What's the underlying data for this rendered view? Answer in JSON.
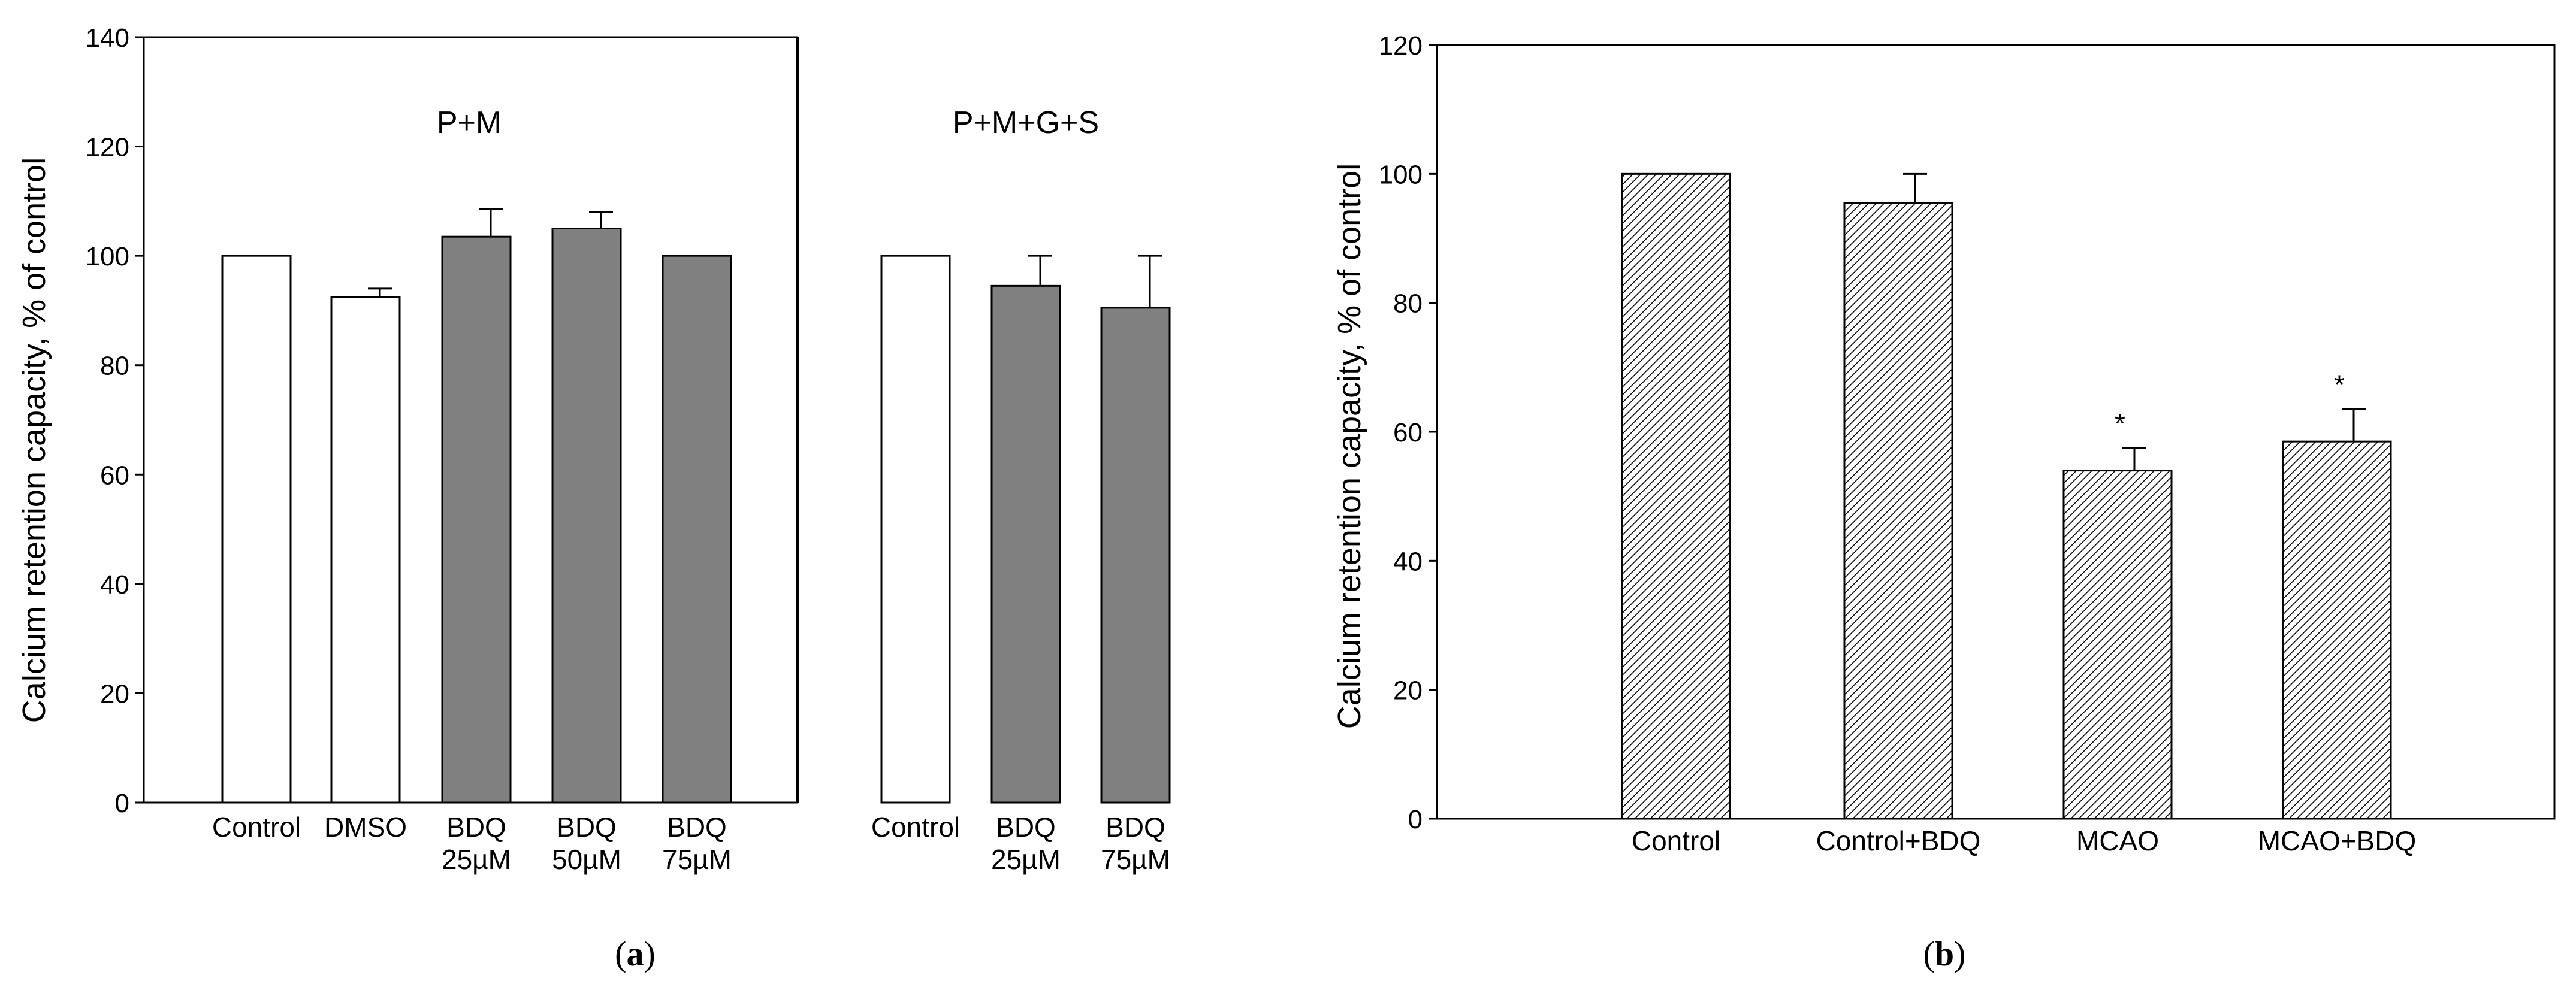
{
  "chart_data": [
    {
      "type": "bar",
      "ylabel": "Calcium retention capacity,  % of control",
      "ylim": [
        0,
        140
      ],
      "yticks": [
        0,
        20,
        40,
        60,
        80,
        100,
        120,
        140
      ],
      "grid": false,
      "groups": [
        {
          "label": "P+M",
          "categories": [
            {
              "label": [
                "Control"
              ],
              "value": 100,
              "err": null,
              "fill": "white"
            },
            {
              "label": [
                "DMSO"
              ],
              "value": 92.5,
              "err": 1.5,
              "fill": "white"
            },
            {
              "label": [
                "BDQ",
                "25µM"
              ],
              "value": 103.5,
              "err": 5,
              "fill": "gray"
            },
            {
              "label": [
                "BDQ",
                "50µM"
              ],
              "value": 105,
              "err": 3,
              "fill": "gray"
            },
            {
              "label": [
                "BDQ",
                "75µM"
              ],
              "value": 100,
              "err": null,
              "fill": "gray"
            }
          ]
        },
        {
          "label": "P+M+G+S",
          "categories": [
            {
              "label": [
                "Control"
              ],
              "value": 100,
              "err": null,
              "fill": "white"
            },
            {
              "label": [
                "BDQ",
                "25µM"
              ],
              "value": 94.5,
              "err": 5.5,
              "fill": "gray"
            },
            {
              "label": [
                "BDQ",
                "75µM"
              ],
              "value": 90.5,
              "err": 9.5,
              "fill": "gray"
            }
          ]
        }
      ],
      "colors": {
        "white": "#ffffff",
        "gray": "#808080",
        "edge": "#000000"
      },
      "panel_label": "a"
    },
    {
      "type": "bar",
      "ylabel": "Calcium retention capacity, % of control",
      "ylim": [
        0,
        120
      ],
      "yticks": [
        0,
        20,
        40,
        60,
        80,
        100,
        120
      ],
      "grid": false,
      "categories": [
        "Control",
        "Control+BDQ",
        "MCAO",
        "MCAO+BDQ"
      ],
      "values": [
        100,
        95.5,
        54,
        58.5
      ],
      "errors": [
        null,
        4.5,
        3.5,
        5
      ],
      "annotations": [
        "",
        "",
        "*",
        "*"
      ],
      "fill": "hatched",
      "panel_label": "b"
    }
  ]
}
